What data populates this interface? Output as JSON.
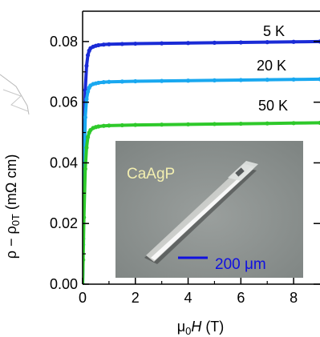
{
  "chart_data": {
    "type": "line",
    "xlabel_prefix": "μ",
    "xlabel_sub": "0",
    "xlabel_italic": "H",
    "xlabel_suffix": " (T)",
    "ylabel_main": "ρ − ρ",
    "ylabel_sub": "0T",
    "ylabel_unit": " (mΩ cm)",
    "xlim": [
      0,
      9
    ],
    "ylim": [
      0.0,
      0.09
    ],
    "xticks": [
      0,
      2,
      4,
      6,
      8
    ],
    "xtick_labels": [
      "0",
      "2",
      "4",
      "6",
      "8"
    ],
    "yticks": [
      0.0,
      0.02,
      0.04,
      0.06,
      0.08
    ],
    "ytick_labels": [
      "0.00",
      "0.02",
      "0.04",
      "0.06",
      "0.08"
    ],
    "grid": false,
    "series": [
      {
        "name": "5 K",
        "color": "#1a2bd6",
        "x": [
          0.0,
          0.02,
          0.05,
          0.1,
          0.15,
          0.2,
          0.25,
          0.3,
          0.4,
          0.5,
          0.6,
          0.8,
          1.0,
          1.5,
          2.0,
          3.0,
          4.0,
          5.0,
          6.0,
          7.0,
          8.0,
          9.0
        ],
        "y": [
          0.0,
          0.015,
          0.04,
          0.064,
          0.072,
          0.0755,
          0.077,
          0.0778,
          0.0783,
          0.0786,
          0.0788,
          0.079,
          0.0791,
          0.0792,
          0.0793,
          0.0794,
          0.0795,
          0.0796,
          0.0797,
          0.0798,
          0.0799,
          0.08
        ]
      },
      {
        "name": "20 K",
        "color": "#19a8f0",
        "x": [
          0.0,
          0.02,
          0.05,
          0.1,
          0.15,
          0.2,
          0.25,
          0.3,
          0.4,
          0.5,
          0.6,
          0.8,
          1.0,
          1.5,
          2.0,
          3.0,
          4.0,
          5.0,
          6.0,
          7.0,
          8.0,
          9.0
        ],
        "y": [
          0.0,
          0.013,
          0.035,
          0.055,
          0.061,
          0.0635,
          0.0648,
          0.0655,
          0.066,
          0.0662,
          0.0664,
          0.0666,
          0.0667,
          0.0668,
          0.0669,
          0.067,
          0.0671,
          0.0672,
          0.0673,
          0.0674,
          0.0675,
          0.0676
        ]
      },
      {
        "name": "50 K",
        "color": "#2ec92a",
        "x": [
          0.0,
          0.02,
          0.05,
          0.1,
          0.15,
          0.2,
          0.25,
          0.3,
          0.4,
          0.5,
          0.6,
          0.8,
          1.0,
          1.5,
          2.0,
          3.0,
          4.0,
          5.0,
          6.0,
          7.0,
          8.0,
          9.0
        ],
        "y": [
          0.0,
          0.008,
          0.022,
          0.038,
          0.045,
          0.0485,
          0.05,
          0.0508,
          0.0515,
          0.0518,
          0.052,
          0.0522,
          0.0523,
          0.0524,
          0.0525,
          0.0526,
          0.0527,
          0.0528,
          0.0529,
          0.053,
          0.0531,
          0.0532
        ]
      }
    ],
    "curve_labels": [
      "5 K",
      "20 K",
      "50 K"
    ],
    "inset": {
      "label": "CaAgP",
      "label_color": "#f3efb0",
      "scale_text": "200 μm",
      "scale_color": "#1010e0",
      "background_color": "#8c9290"
    }
  }
}
